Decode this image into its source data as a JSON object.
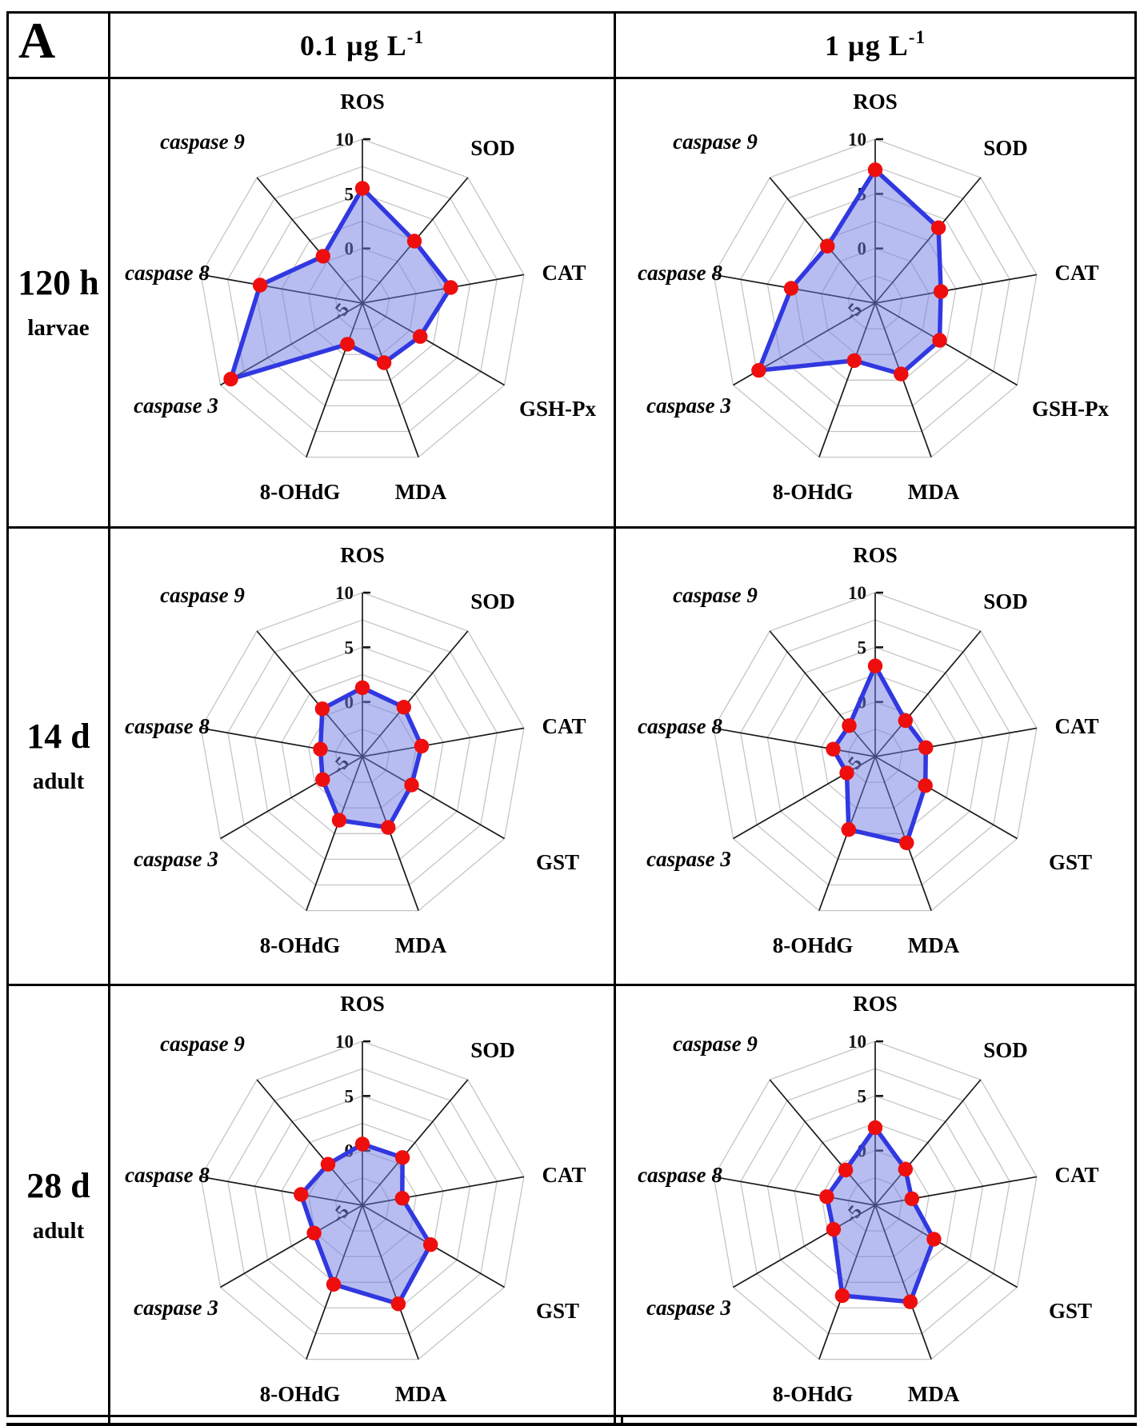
{
  "figure": {
    "panel_label": "A"
  },
  "headers": [
    {
      "base": "0.1 µg L",
      "exp": "-1"
    },
    {
      "base": "1 µg L",
      "exp": "-1"
    }
  ],
  "rows": [
    {
      "time_label": "120 h",
      "stage_label": "larvae",
      "chart_indexes": [
        0,
        1
      ]
    },
    {
      "time_label": "14 d",
      "stage_label": "adult",
      "chart_indexes": [
        2,
        3
      ]
    },
    {
      "time_label": "28 d",
      "stage_label": "adult",
      "chart_indexes": [
        4,
        5
      ]
    }
  ],
  "radar_style": {
    "fill": "#707ce4",
    "fill_opacity": 0.5,
    "stroke": "#3138e0",
    "marker": "#ee0e0e",
    "ring": "#c5c5c5",
    "spoke": "#1a1a1a",
    "tick_color": "#111111"
  },
  "chart_data": [
    {
      "type": "radar",
      "group": "120 h larvae",
      "dose": "0.1 µg L⁻¹",
      "categories": [
        "ROS",
        "SOD",
        "CAT",
        "GSH-Px",
        "MDA",
        "8-OHdG",
        "caspase 3",
        "caspase 8",
        "caspase 9"
      ],
      "italic": [
        false,
        false,
        false,
        false,
        false,
        false,
        true,
        true,
        true
      ],
      "values": [
        5.5,
        2.4,
        3.2,
        1.1,
        0.8,
        -1.0,
        8.9,
        4.5,
        0.6
      ],
      "rlim": [
        -5,
        10
      ],
      "rticks": [
        10,
        5,
        0
      ],
      "center_tick": "-5",
      "ring_step": 2.5
    },
    {
      "type": "radar",
      "group": "120 h larvae",
      "dose": "1 µg L⁻¹",
      "categories": [
        "ROS",
        "SOD",
        "CAT",
        "GSH-Px",
        "MDA",
        "8-OHdG",
        "caspase 3",
        "caspase 8",
        "caspase 9"
      ],
      "italic": [
        false,
        false,
        false,
        false,
        false,
        false,
        true,
        true,
        true
      ],
      "values": [
        7.2,
        4.0,
        1.1,
        1.8,
        1.9,
        0.6,
        7.3,
        2.8,
        1.8
      ],
      "rlim": [
        -5,
        10
      ],
      "rticks": [
        10,
        5,
        0
      ],
      "center_tick": "-5",
      "ring_step": 2.5
    },
    {
      "type": "radar",
      "group": "14 d adult",
      "dose": "0.1 µg L⁻¹",
      "categories": [
        "ROS",
        "SOD",
        "CAT",
        "GST",
        "MDA",
        "8-OHdG",
        "caspase 3",
        "caspase 8",
        "caspase 9"
      ],
      "italic": [
        false,
        false,
        false,
        false,
        false,
        false,
        true,
        true,
        true
      ],
      "values": [
        1.3,
        0.9,
        0.5,
        0.2,
        1.9,
        1.2,
        -0.8,
        -1.1,
        0.7
      ],
      "rlim": [
        -5,
        10
      ],
      "rticks": [
        10,
        5,
        0
      ],
      "center_tick": "-5",
      "ring_step": 2.5
    },
    {
      "type": "radar",
      "group": "14 d adult",
      "dose": "1 µg L⁻¹",
      "categories": [
        "ROS",
        "SOD",
        "CAT",
        "GST",
        "MDA",
        "8-OHdG",
        "caspase 3",
        "caspase 8",
        "caspase 9"
      ],
      "italic": [
        false,
        false,
        false,
        false,
        false,
        false,
        true,
        true,
        true
      ],
      "values": [
        3.3,
        -0.7,
        -0.3,
        0.3,
        3.4,
        2.1,
        -2.0,
        -1.1,
        -1.3
      ],
      "rlim": [
        -5,
        10
      ],
      "rticks": [
        10,
        5,
        0
      ],
      "center_tick": "-5",
      "ring_step": 2.5
    },
    {
      "type": "radar",
      "group": "28 d adult",
      "dose": "0.1 µg L⁻¹",
      "categories": [
        "ROS",
        "SOD",
        "CAT",
        "GST",
        "MDA",
        "8-OHdG",
        "caspase 3",
        "caspase 8",
        "caspase 9"
      ],
      "italic": [
        false,
        false,
        false,
        false,
        false,
        false,
        true,
        true,
        true
      ],
      "values": [
        0.6,
        0.7,
        -1.3,
        2.2,
        4.6,
        2.7,
        0.1,
        0.7,
        -0.1
      ],
      "rlim": [
        -5,
        10
      ],
      "rticks": [
        10,
        5,
        0
      ],
      "center_tick": "-5",
      "ring_step": 2.5
    },
    {
      "type": "radar",
      "group": "28 d adult",
      "dose": "1 µg L⁻¹",
      "categories": [
        "ROS",
        "SOD",
        "CAT",
        "GST",
        "MDA",
        "8-OHdG",
        "caspase 3",
        "caspase 8",
        "caspase 9"
      ],
      "italic": [
        false,
        false,
        false,
        false,
        false,
        false,
        true,
        true,
        true
      ],
      "values": [
        2.1,
        -0.7,
        -1.6,
        1.2,
        4.4,
        3.8,
        -0.6,
        -0.5,
        -0.8
      ],
      "rlim": [
        -5,
        10
      ],
      "rticks": [
        10,
        5,
        0
      ],
      "center_tick": "-5",
      "ring_step": 2.5
    }
  ]
}
